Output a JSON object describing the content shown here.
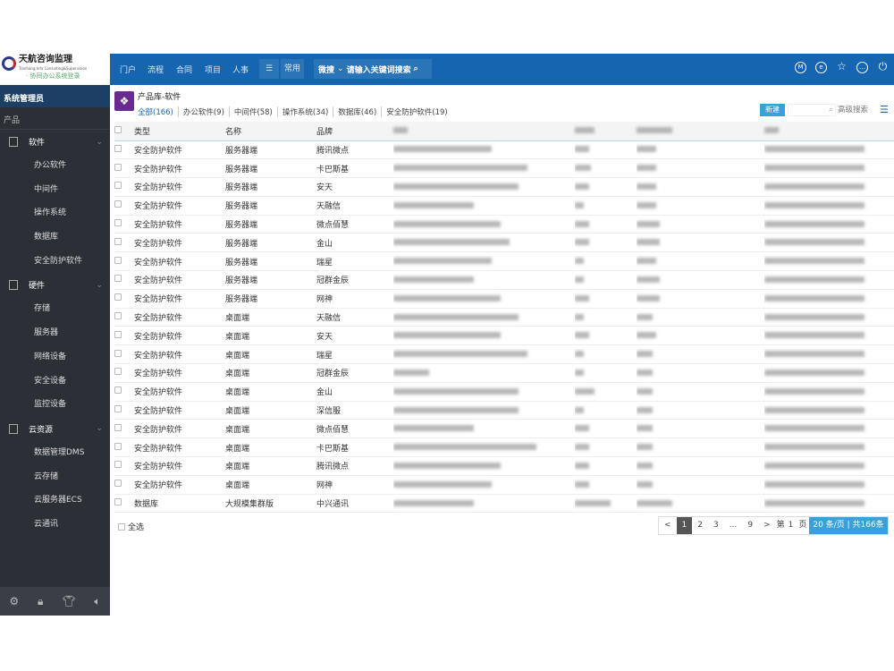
{
  "logo": {
    "name": "天航咨询监理",
    "sub": "Tianhang Info Consulting&Supervision",
    "slogan": "· 协同办公系统登录"
  },
  "topnav": {
    "items": [
      "门户",
      "流程",
      "合同",
      "项目",
      "人事"
    ],
    "menu_icon": "menu-icon",
    "common": "常用",
    "search_scope": "微搜",
    "search_placeholder": "请输入关键词搜索",
    "right_icons": [
      "m-circle-icon",
      "r-circle-icon",
      "star-icon",
      "more-circle-icon",
      "power-icon"
    ]
  },
  "sidebar": {
    "user": "系统管理员",
    "section": "产品",
    "groups": [
      {
        "label": "软件",
        "items": [
          "办公软件",
          "中间件",
          "操作系统",
          "数据库",
          "安全防护软件"
        ]
      },
      {
        "label": "硬件",
        "items": [
          "存储",
          "服务器",
          "网络设备",
          "安全设备",
          "监控设备"
        ]
      },
      {
        "label": "云资源",
        "items": [
          "数据管理DMS",
          "云存储",
          "云服务器ECS",
          "云通讯"
        ]
      }
    ],
    "footer_icons": [
      "settings-icon",
      "lock-icon",
      "shirt-icon",
      "speaker-icon"
    ]
  },
  "page": {
    "title": "产品库-软件",
    "tabs": [
      "全部(166)",
      "办公软件(9)",
      "中间件(58)",
      "操作系统(34)",
      "数据库(46)",
      "安全防护软件(19)"
    ],
    "new_label": "新建",
    "advanced_search": "高级搜索"
  },
  "table": {
    "headers": [
      "类型",
      "名称",
      "品牌"
    ],
    "rows": [
      [
        "安全防护软件",
        "服务器端",
        "腾讯微点"
      ],
      [
        "安全防护软件",
        "服务器端",
        "卡巴斯基"
      ],
      [
        "安全防护软件",
        "服务器端",
        "安天"
      ],
      [
        "安全防护软件",
        "服务器端",
        "天融信"
      ],
      [
        "安全防护软件",
        "服务器端",
        "微点佰慧"
      ],
      [
        "安全防护软件",
        "服务器端",
        "金山"
      ],
      [
        "安全防护软件",
        "服务器端",
        "瑞星"
      ],
      [
        "安全防护软件",
        "服务器端",
        "冠群金辰"
      ],
      [
        "安全防护软件",
        "服务器端",
        "网神"
      ],
      [
        "安全防护软件",
        "桌面端",
        "天融信"
      ],
      [
        "安全防护软件",
        "桌面端",
        "安天"
      ],
      [
        "安全防护软件",
        "桌面端",
        "瑞星"
      ],
      [
        "安全防护软件",
        "桌面端",
        "冠群金辰"
      ],
      [
        "安全防护软件",
        "桌面端",
        "金山"
      ],
      [
        "安全防护软件",
        "桌面端",
        "深信服"
      ],
      [
        "安全防护软件",
        "桌面端",
        "微点佰慧"
      ],
      [
        "安全防护软件",
        "桌面端",
        "卡巴斯基"
      ],
      [
        "安全防护软件",
        "桌面端",
        "腾讯微点"
      ],
      [
        "安全防护软件",
        "桌面端",
        "网神"
      ],
      [
        "数据库",
        "大规模集群版",
        "中兴通讯"
      ]
    ]
  },
  "footer": {
    "select_all": "全选",
    "pager": {
      "prev": "<",
      "pages": [
        "1",
        "2",
        "3",
        "...",
        "9"
      ],
      "current": "1",
      "next": ">",
      "goto_prefix": "第",
      "goto_value": "1",
      "goto_suffix": "页",
      "page_size": "20 条/页 | 共166条"
    }
  },
  "colors": {
    "topbar": "#1565b0",
    "sidebar": "#2b2f36",
    "accent": "#3aa0dc"
  }
}
